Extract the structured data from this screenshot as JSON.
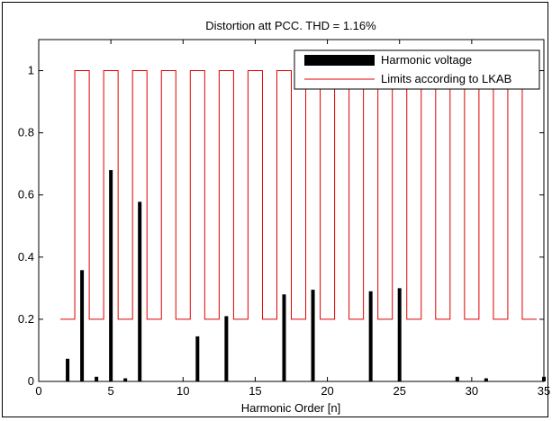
{
  "chart_data": {
    "type": "bar",
    "title": "Distortion att PCC. THD = 1.16%",
    "xlabel": "Harmonic Order [n]",
    "ylabel": "",
    "xlim": [
      0,
      35
    ],
    "ylim": [
      0,
      1.1
    ],
    "xticks": [
      0,
      5,
      10,
      15,
      20,
      25,
      30,
      35
    ],
    "xtick_labels": [
      "0",
      "5",
      "10",
      "15",
      "20",
      "25",
      "30",
      "35"
    ],
    "yticks": [
      0,
      0.2,
      0.4,
      0.6,
      0.8,
      1
    ],
    "ytick_labels": [
      "0",
      "0.2",
      "0.4",
      "0.6",
      "0.8",
      "1"
    ],
    "grid": false,
    "legend_position": "top-right",
    "series": [
      {
        "name": "Harmonic voltage",
        "kind": "bar",
        "color": "#000000",
        "x": [
          2,
          3,
          4,
          5,
          6,
          7,
          11,
          13,
          17,
          19,
          23,
          25,
          29,
          31,
          35
        ],
        "values": [
          0.073,
          0.358,
          0.015,
          0.68,
          0.01,
          0.578,
          0.145,
          0.21,
          0.28,
          0.295,
          0.29,
          0.3,
          0.015,
          0.01,
          0.015
        ]
      },
      {
        "name": "Limits according to LKAB",
        "kind": "step",
        "color": "#e00000",
        "x_start": 1.5,
        "x_end": 34.5,
        "odd_value": 1.0,
        "even_value": 0.2,
        "harmonics": [
          2,
          3,
          4,
          5,
          6,
          7,
          8,
          9,
          10,
          11,
          12,
          13,
          14,
          15,
          16,
          17,
          18,
          19,
          20,
          21,
          22,
          23,
          24,
          25,
          26,
          27,
          28,
          29,
          30,
          31,
          32,
          33,
          34
        ],
        "values": [
          0.2,
          1,
          0.2,
          1,
          0.2,
          1,
          0.2,
          1,
          0.2,
          1,
          0.2,
          1,
          0.2,
          1,
          0.2,
          1,
          0.2,
          1,
          0.2,
          1,
          0.2,
          1,
          0.2,
          1,
          0.2,
          1,
          0.2,
          1,
          0.2,
          1,
          0.2,
          1,
          0.2
        ]
      }
    ]
  }
}
